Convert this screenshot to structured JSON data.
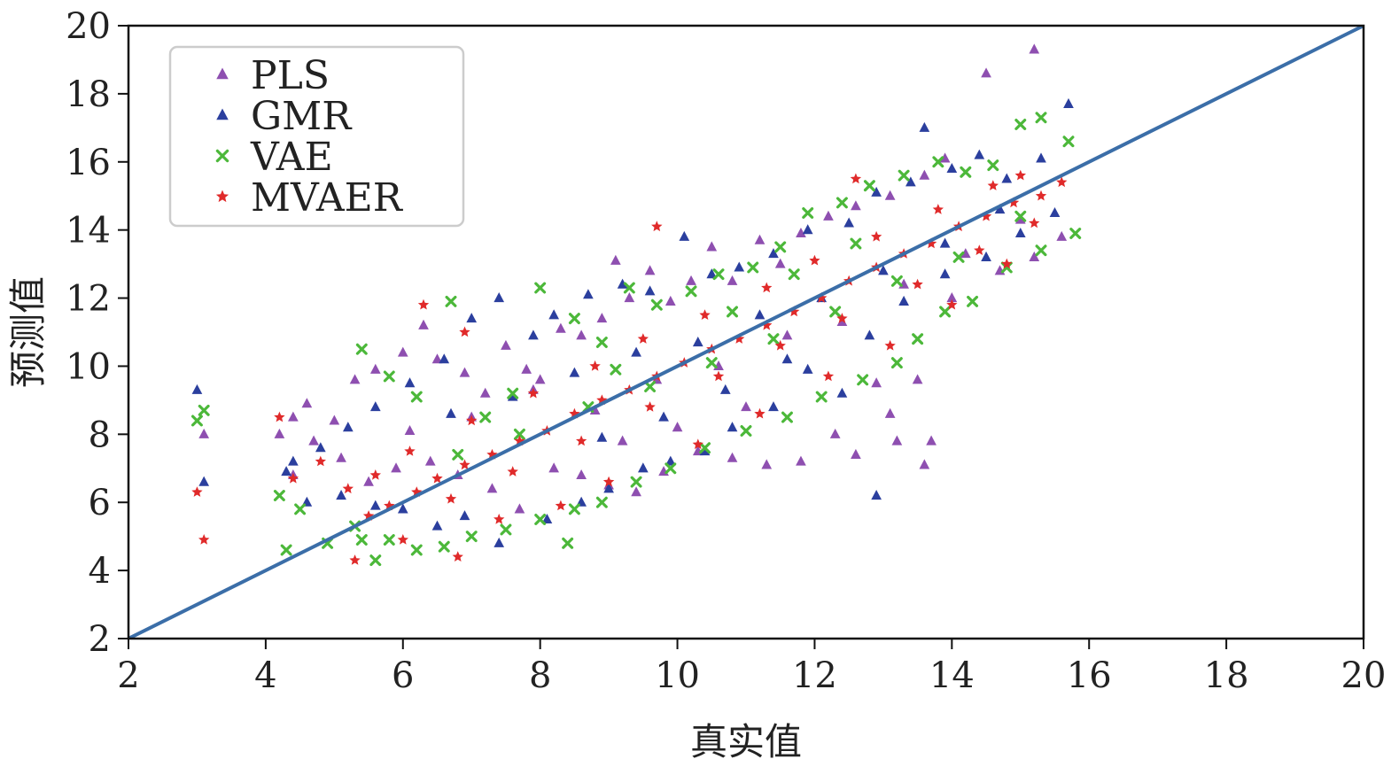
{
  "chart_data": {
    "type": "scatter",
    "xlabel": "真实值",
    "ylabel": "预测值",
    "xlim": [
      2,
      20
    ],
    "ylim": [
      2,
      20
    ],
    "xticks": [
      2,
      4,
      6,
      8,
      10,
      12,
      14,
      16,
      18,
      20
    ],
    "yticks": [
      2,
      4,
      6,
      8,
      10,
      12,
      14,
      16,
      18,
      20
    ],
    "grid": false,
    "legend_position": "top-left",
    "reference_line": {
      "from": [
        2,
        2
      ],
      "to": [
        20,
        20
      ],
      "color": "#3b6ea8"
    },
    "series": [
      {
        "name": "PLS",
        "marker": "triangle",
        "color": "#8e4fb0",
        "points": [
          [
            3.1,
            8.0
          ],
          [
            4.2,
            8.0
          ],
          [
            4.4,
            8.5
          ],
          [
            4.6,
            8.9
          ],
          [
            5.0,
            8.4
          ],
          [
            5.3,
            9.6
          ],
          [
            5.6,
            9.9
          ],
          [
            6.0,
            10.4
          ],
          [
            6.3,
            11.2
          ],
          [
            6.5,
            10.2
          ],
          [
            6.9,
            9.8
          ],
          [
            7.2,
            9.2
          ],
          [
            7.5,
            10.6
          ],
          [
            7.8,
            9.9
          ],
          [
            8.0,
            9.6
          ],
          [
            8.3,
            11.1
          ],
          [
            8.6,
            10.9
          ],
          [
            8.9,
            11.4
          ],
          [
            9.1,
            13.1
          ],
          [
            9.3,
            12.0
          ],
          [
            9.6,
            12.8
          ],
          [
            9.9,
            11.9
          ],
          [
            10.2,
            12.5
          ],
          [
            10.5,
            13.5
          ],
          [
            10.8,
            12.5
          ],
          [
            11.2,
            13.7
          ],
          [
            11.5,
            13.0
          ],
          [
            11.8,
            13.9
          ],
          [
            12.2,
            14.4
          ],
          [
            12.6,
            14.7
          ],
          [
            13.1,
            15.0
          ],
          [
            13.6,
            15.6
          ],
          [
            13.9,
            16.1
          ],
          [
            14.5,
            18.6
          ],
          [
            15.2,
            19.3
          ],
          [
            15.6,
            13.8
          ],
          [
            15.2,
            13.2
          ],
          [
            14.7,
            12.8
          ],
          [
            14.0,
            12.0
          ],
          [
            13.5,
            9.6
          ],
          [
            13.7,
            7.8
          ],
          [
            13.6,
            7.1
          ],
          [
            13.2,
            7.8
          ],
          [
            12.6,
            7.4
          ],
          [
            12.3,
            8.0
          ],
          [
            11.8,
            7.2
          ],
          [
            11.3,
            7.1
          ],
          [
            10.8,
            7.3
          ],
          [
            10.3,
            7.5
          ],
          [
            9.8,
            6.9
          ],
          [
            9.4,
            6.3
          ],
          [
            9.0,
            6.5
          ],
          [
            8.6,
            6.8
          ],
          [
            7.7,
            5.8
          ],
          [
            7.3,
            6.4
          ],
          [
            6.8,
            6.8
          ],
          [
            6.4,
            7.2
          ],
          [
            5.9,
            7.0
          ],
          [
            5.5,
            6.6
          ],
          [
            5.1,
            7.3
          ],
          [
            4.7,
            7.8
          ],
          [
            4.4,
            6.8
          ],
          [
            6.1,
            8.1
          ],
          [
            7.0,
            8.5
          ],
          [
            7.9,
            9.3
          ],
          [
            8.8,
            8.7
          ],
          [
            9.7,
            9.6
          ],
          [
            10.6,
            10.0
          ],
          [
            11.6,
            10.9
          ],
          [
            12.4,
            11.3
          ],
          [
            13.3,
            12.4
          ],
          [
            14.2,
            13.3
          ],
          [
            15.0,
            14.3
          ],
          [
            12.9,
            9.5
          ],
          [
            13.1,
            8.6
          ],
          [
            10.0,
            8.2
          ],
          [
            11.0,
            8.8
          ],
          [
            9.2,
            7.8
          ],
          [
            8.2,
            7.0
          ]
        ]
      },
      {
        "name": "GMR",
        "marker": "triangle",
        "color": "#2b3f9e",
        "points": [
          [
            3.0,
            9.3
          ],
          [
            3.1,
            6.6
          ],
          [
            4.3,
            6.9
          ],
          [
            4.8,
            7.6
          ],
          [
            5.2,
            8.2
          ],
          [
            5.6,
            8.8
          ],
          [
            6.1,
            9.5
          ],
          [
            6.6,
            10.2
          ],
          [
            7.0,
            11.4
          ],
          [
            7.4,
            12.0
          ],
          [
            7.9,
            10.9
          ],
          [
            8.2,
            11.5
          ],
          [
            8.7,
            12.1
          ],
          [
            9.2,
            12.4
          ],
          [
            9.6,
            12.2
          ],
          [
            10.1,
            13.8
          ],
          [
            10.5,
            12.7
          ],
          [
            10.9,
            12.9
          ],
          [
            11.4,
            13.3
          ],
          [
            11.9,
            14.0
          ],
          [
            12.5,
            14.2
          ],
          [
            12.9,
            15.1
          ],
          [
            13.4,
            15.4
          ],
          [
            13.6,
            17.0
          ],
          [
            14.0,
            15.8
          ],
          [
            14.4,
            16.2
          ],
          [
            14.8,
            15.5
          ],
          [
            15.3,
            16.1
          ],
          [
            15.7,
            17.7
          ],
          [
            15.5,
            14.5
          ],
          [
            15.0,
            13.9
          ],
          [
            14.5,
            13.2
          ],
          [
            13.9,
            12.7
          ],
          [
            13.3,
            11.9
          ],
          [
            12.8,
            10.9
          ],
          [
            12.9,
            6.2
          ],
          [
            12.4,
            9.2
          ],
          [
            11.9,
            9.9
          ],
          [
            11.4,
            8.8
          ],
          [
            10.8,
            8.2
          ],
          [
            10.4,
            7.5
          ],
          [
            9.9,
            7.2
          ],
          [
            9.5,
            7.0
          ],
          [
            9.0,
            6.4
          ],
          [
            8.6,
            6.0
          ],
          [
            8.1,
            5.5
          ],
          [
            7.4,
            4.8
          ],
          [
            6.9,
            5.6
          ],
          [
            6.5,
            5.3
          ],
          [
            6.0,
            5.8
          ],
          [
            5.6,
            5.9
          ],
          [
            5.1,
            6.2
          ],
          [
            4.6,
            6.0
          ],
          [
            4.4,
            7.2
          ],
          [
            6.7,
            8.6
          ],
          [
            7.6,
            9.1
          ],
          [
            8.5,
            9.8
          ],
          [
            9.4,
            10.4
          ],
          [
            10.3,
            10.7
          ],
          [
            11.2,
            11.5
          ],
          [
            12.1,
            12.0
          ],
          [
            13.0,
            12.8
          ],
          [
            13.9,
            13.6
          ],
          [
            14.7,
            14.6
          ],
          [
            11.6,
            10.2
          ],
          [
            10.7,
            9.3
          ],
          [
            9.8,
            8.5
          ],
          [
            8.9,
            7.9
          ]
        ]
      },
      {
        "name": "VAE",
        "marker": "x",
        "color": "#4cb83a",
        "points": [
          [
            3.0,
            8.4
          ],
          [
            3.1,
            8.7
          ],
          [
            4.2,
            6.2
          ],
          [
            4.5,
            5.8
          ],
          [
            4.3,
            4.6
          ],
          [
            4.9,
            4.8
          ],
          [
            5.4,
            4.9
          ],
          [
            5.6,
            4.3
          ],
          [
            5.4,
            10.5
          ],
          [
            5.8,
            9.7
          ],
          [
            6.2,
            9.1
          ],
          [
            6.7,
            11.9
          ],
          [
            7.2,
            8.5
          ],
          [
            7.6,
            9.2
          ],
          [
            8.0,
            12.3
          ],
          [
            8.5,
            11.4
          ],
          [
            8.9,
            10.7
          ],
          [
            9.3,
            12.3
          ],
          [
            9.7,
            11.8
          ],
          [
            10.2,
            12.2
          ],
          [
            10.6,
            12.7
          ],
          [
            11.1,
            12.9
          ],
          [
            11.5,
            13.5
          ],
          [
            11.9,
            14.5
          ],
          [
            12.4,
            14.8
          ],
          [
            12.8,
            15.3
          ],
          [
            13.3,
            15.6
          ],
          [
            13.8,
            16.0
          ],
          [
            14.2,
            15.7
          ],
          [
            14.6,
            15.9
          ],
          [
            15.0,
            17.1
          ],
          [
            15.3,
            17.3
          ],
          [
            15.7,
            16.6
          ],
          [
            15.8,
            13.9
          ],
          [
            15.3,
            13.4
          ],
          [
            14.8,
            12.9
          ],
          [
            14.3,
            11.9
          ],
          [
            13.9,
            11.6
          ],
          [
            13.5,
            10.8
          ],
          [
            13.2,
            10.1
          ],
          [
            12.7,
            9.6
          ],
          [
            12.1,
            9.1
          ],
          [
            11.6,
            8.5
          ],
          [
            11.0,
            8.1
          ],
          [
            10.4,
            7.6
          ],
          [
            9.9,
            7.0
          ],
          [
            9.4,
            6.6
          ],
          [
            8.9,
            6.0
          ],
          [
            8.5,
            5.8
          ],
          [
            8.0,
            5.5
          ],
          [
            7.5,
            5.2
          ],
          [
            7.0,
            5.0
          ],
          [
            6.6,
            4.7
          ],
          [
            6.2,
            4.6
          ],
          [
            5.8,
            4.9
          ],
          [
            5.3,
            5.3
          ],
          [
            8.4,
            4.8
          ],
          [
            6.8,
            7.4
          ],
          [
            7.7,
            8.0
          ],
          [
            8.7,
            8.8
          ],
          [
            9.6,
            9.4
          ],
          [
            10.5,
            10.1
          ],
          [
            11.4,
            10.8
          ],
          [
            12.3,
            11.6
          ],
          [
            13.2,
            12.5
          ],
          [
            14.1,
            13.2
          ],
          [
            15.0,
            14.4
          ],
          [
            12.6,
            13.6
          ],
          [
            11.7,
            12.7
          ],
          [
            10.8,
            11.6
          ],
          [
            9.1,
            9.9
          ]
        ]
      },
      {
        "name": "MVAER",
        "marker": "star",
        "color": "#e02a2a",
        "points": [
          [
            3.0,
            6.3
          ],
          [
            3.1,
            4.9
          ],
          [
            4.2,
            8.5
          ],
          [
            4.4,
            6.7
          ],
          [
            4.8,
            7.2
          ],
          [
            5.2,
            6.4
          ],
          [
            5.5,
            5.6
          ],
          [
            5.8,
            5.9
          ],
          [
            6.2,
            6.3
          ],
          [
            6.5,
            6.7
          ],
          [
            6.9,
            7.1
          ],
          [
            7.3,
            7.4
          ],
          [
            7.7,
            7.8
          ],
          [
            8.1,
            8.1
          ],
          [
            8.5,
            8.6
          ],
          [
            8.9,
            9.0
          ],
          [
            9.3,
            9.3
          ],
          [
            9.7,
            9.7
          ],
          [
            10.1,
            10.1
          ],
          [
            10.5,
            10.5
          ],
          [
            10.9,
            10.8
          ],
          [
            11.3,
            11.2
          ],
          [
            11.7,
            11.6
          ],
          [
            12.1,
            12.0
          ],
          [
            12.5,
            12.5
          ],
          [
            12.9,
            12.9
          ],
          [
            13.3,
            13.3
          ],
          [
            13.7,
            13.6
          ],
          [
            14.1,
            14.1
          ],
          [
            14.5,
            14.4
          ],
          [
            14.9,
            14.8
          ],
          [
            15.3,
            15.0
          ],
          [
            15.6,
            15.4
          ],
          [
            6.3,
            11.8
          ],
          [
            6.9,
            11.0
          ],
          [
            9.7,
            14.1
          ],
          [
            12.6,
            15.5
          ],
          [
            15.0,
            15.6
          ],
          [
            5.3,
            4.3
          ],
          [
            6.0,
            4.9
          ],
          [
            7.4,
            5.5
          ],
          [
            8.3,
            5.9
          ],
          [
            9.0,
            6.6
          ],
          [
            10.3,
            7.7
          ],
          [
            11.2,
            8.6
          ],
          [
            12.2,
            9.7
          ],
          [
            13.1,
            10.6
          ],
          [
            14.0,
            11.8
          ],
          [
            14.8,
            13.0
          ],
          [
            6.1,
            7.5
          ],
          [
            7.0,
            8.4
          ],
          [
            7.9,
            9.2
          ],
          [
            8.8,
            10.0
          ],
          [
            9.5,
            10.8
          ],
          [
            10.4,
            11.5
          ],
          [
            11.3,
            12.3
          ],
          [
            12.0,
            13.1
          ],
          [
            12.9,
            13.8
          ],
          [
            13.8,
            14.6
          ],
          [
            14.6,
            15.3
          ],
          [
            5.6,
            6.8
          ],
          [
            6.7,
            6.1
          ],
          [
            7.6,
            6.9
          ],
          [
            8.6,
            7.8
          ],
          [
            9.6,
            8.8
          ],
          [
            10.6,
            9.7
          ],
          [
            11.5,
            10.6
          ],
          [
            12.4,
            11.4
          ],
          [
            13.5,
            12.4
          ],
          [
            14.4,
            13.4
          ],
          [
            15.2,
            14.2
          ],
          [
            6.8,
            4.4
          ]
        ]
      }
    ]
  }
}
